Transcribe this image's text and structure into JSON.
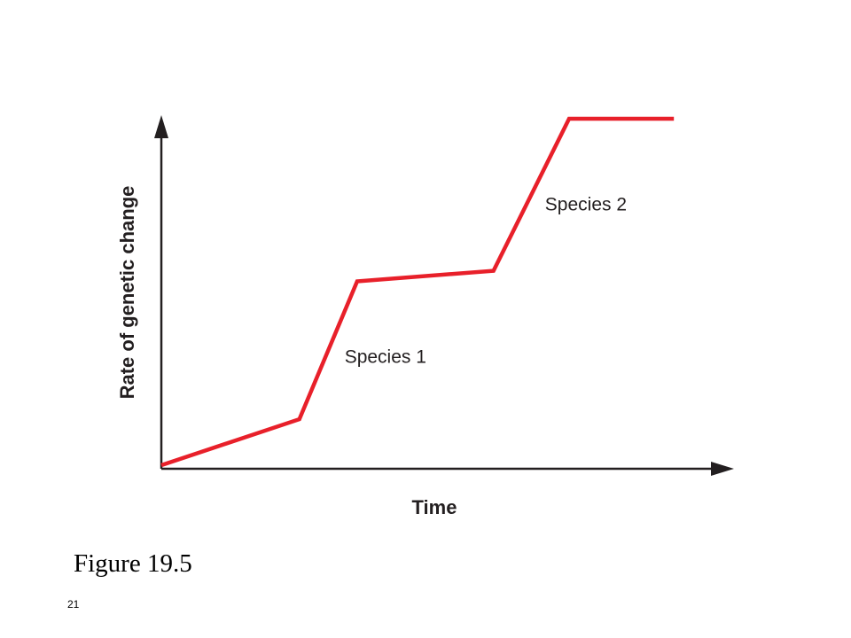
{
  "chart_data": {
    "type": "line",
    "title": "",
    "xlabel": "Time",
    "ylabel": "Rate of genetic change",
    "xlim": [
      0,
      10
    ],
    "ylim": [
      0,
      10
    ],
    "grid": false,
    "series": [
      {
        "color": "#e8202a",
        "x": [
          0,
          2.41,
          3.42,
          5.8,
          7.12,
          8.95
        ],
        "y": [
          0.1,
          1.4,
          5.3,
          5.6,
          9.9,
          9.9
        ]
      }
    ],
    "annotations": [
      {
        "text": "Species 1",
        "x": 3.2,
        "y": 3.0
      },
      {
        "text": "Species 2",
        "x": 6.7,
        "y": 7.3
      }
    ]
  },
  "caption": "Figure 19.5",
  "slide_number": "21"
}
